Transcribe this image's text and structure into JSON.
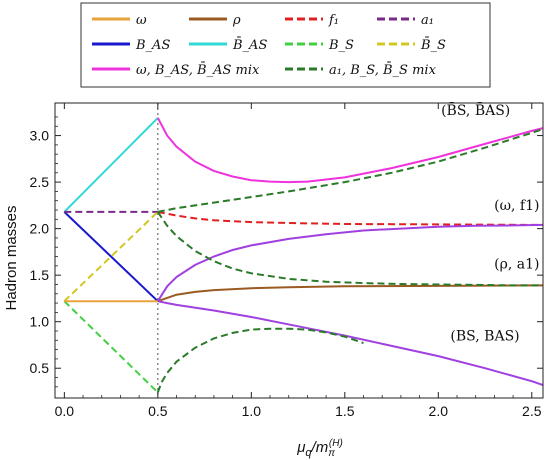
{
  "chart_data": {
    "type": "line",
    "title": "",
    "xlabel": "μq/mπ(H)",
    "ylabel": "Hadron masses",
    "xlim": [
      -0.05,
      2.56
    ],
    "ylim": [
      0.18,
      3.35
    ],
    "xticks": [
      0.0,
      0.5,
      1.0,
      1.5,
      2.0,
      2.5
    ],
    "xtick_labels": [
      "0.0",
      "0.5",
      "1.0",
      "1.5",
      "2.0",
      "2.5"
    ],
    "yticks": [
      0.5,
      1.0,
      1.5,
      2.0,
      2.5,
      3.0
    ],
    "ytick_labels": [
      "0.5",
      "1.0",
      "1.5",
      "2.0",
      "2.5",
      "3.0"
    ],
    "grid": false,
    "legend_position": "top-outside",
    "vertical_reference_x": 0.5,
    "legend": [
      {
        "id": "omega",
        "label": "ω",
        "color": "#e8a33a",
        "dash": "solid"
      },
      {
        "id": "rho",
        "label": "ρ",
        "color": "#9a5a22",
        "dash": "solid"
      },
      {
        "id": "f1",
        "label": "f₁",
        "color": "#e02020",
        "dash": "dashed"
      },
      {
        "id": "a1",
        "label": "a₁",
        "color": "#7a2a8a",
        "dash": "dashed"
      },
      {
        "id": "BAS",
        "label": "B_AS",
        "color": "#1818cc",
        "dash": "solid"
      },
      {
        "id": "BbarAS",
        "label": "B̄_AS",
        "color": "#30d8d8",
        "dash": "solid"
      },
      {
        "id": "BS",
        "label": "B_S",
        "color": "#40d040",
        "dash": "dashed"
      },
      {
        "id": "BbarS",
        "label": "B̄_S",
        "color": "#d0c820",
        "dash": "dashed"
      },
      {
        "id": "mix1",
        "label": "ω, B_AS, B̄_AS mix",
        "color": "#ee33dd",
        "dash": "solid"
      },
      {
        "id": "mix2",
        "label": "a₁, B_S, B̄_S mix",
        "color": "#2a7a2a",
        "dash": "dashed"
      }
    ],
    "annotations": [
      {
        "text": "(B̄S, B̄AS)",
        "x": 2.2,
        "y": 3.22
      },
      {
        "text": "(ω, f1)",
        "x": 2.42,
        "y": 2.2
      },
      {
        "text": "(ρ, a1)",
        "x": 2.42,
        "y": 1.57
      },
      {
        "text": "(BS, BAS)",
        "x": 2.25,
        "y": 0.8
      }
    ],
    "series": [
      {
        "legend": "BbarAS",
        "color": "#30d8d8",
        "dash": "solid",
        "width": 2,
        "x": [
          0.0,
          0.5
        ],
        "y": [
          2.18,
          3.19
        ]
      },
      {
        "legend": "BAS",
        "color": "#1818cc",
        "dash": "solid",
        "width": 2,
        "x": [
          0.0,
          0.5
        ],
        "y": [
          2.18,
          1.22
        ]
      },
      {
        "legend": "a1",
        "color": "#7a2a8a",
        "dash": "dashed",
        "width": 2,
        "x": [
          0.0,
          0.5
        ],
        "y": [
          2.18,
          2.18
        ]
      },
      {
        "legend": "BbarS",
        "color": "#d0c820",
        "dash": "dashed",
        "width": 2,
        "x": [
          0.0,
          0.5
        ],
        "y": [
          1.22,
          2.18
        ]
      },
      {
        "legend": "BS",
        "color": "#40d040",
        "dash": "dashed",
        "width": 2,
        "x": [
          0.0,
          0.5
        ],
        "y": [
          1.22,
          0.24
        ]
      },
      {
        "legend": "omega",
        "color": "#e8a33a",
        "dash": "solid",
        "width": 2,
        "x": [
          0.0,
          0.5
        ],
        "y": [
          1.22,
          1.22
        ]
      },
      {
        "legend": "rho",
        "color": "#9a5a22",
        "dash": "solid",
        "width": 2,
        "x": [
          0.5,
          0.6,
          0.7,
          0.8,
          1.0,
          1.2,
          1.5,
          2.0,
          2.5,
          2.56
        ],
        "y": [
          1.22,
          1.29,
          1.32,
          1.34,
          1.36,
          1.37,
          1.38,
          1.385,
          1.39,
          1.39
        ]
      },
      {
        "legend": "f1",
        "color": "#e02020",
        "dash": "dashed",
        "width": 2,
        "x": [
          0.5,
          0.6,
          0.7,
          0.8,
          1.0,
          1.2,
          1.5,
          2.0,
          2.5,
          2.56
        ],
        "y": [
          2.18,
          2.14,
          2.11,
          2.09,
          2.07,
          2.06,
          2.05,
          2.045,
          2.04,
          2.04
        ]
      },
      {
        "legend": "mix1",
        "color": "#ee33dd",
        "dash": "solid",
        "width": 2,
        "x": [
          0.5,
          0.55,
          0.6,
          0.7,
          0.8,
          0.9,
          1.0,
          1.1,
          1.2,
          1.3,
          1.5,
          1.75,
          2.0,
          2.25,
          2.5,
          2.56
        ],
        "y": [
          3.19,
          3.0,
          2.88,
          2.72,
          2.62,
          2.56,
          2.52,
          2.505,
          2.5,
          2.505,
          2.55,
          2.65,
          2.77,
          2.91,
          3.05,
          3.08
        ]
      },
      {
        "legend": "mix1",
        "color": "#a040e0",
        "dash": "solid",
        "width": 2,
        "x": [
          0.5,
          0.55,
          0.6,
          0.7,
          0.8,
          0.9,
          1.0,
          1.2,
          1.4,
          1.6,
          1.8,
          2.0,
          2.2,
          2.4,
          2.56
        ],
        "y": [
          1.22,
          1.38,
          1.48,
          1.61,
          1.7,
          1.77,
          1.82,
          1.89,
          1.94,
          1.98,
          2.0,
          2.02,
          2.03,
          2.035,
          2.04
        ]
      },
      {
        "legend": "mix1",
        "color": "#a040e0",
        "dash": "solid",
        "width": 2,
        "x": [
          0.5,
          0.55,
          0.6,
          0.8,
          1.0,
          1.25,
          1.5,
          1.75,
          2.0,
          2.25,
          2.5,
          2.56
        ],
        "y": [
          1.22,
          1.2,
          1.18,
          1.12,
          1.05,
          0.95,
          0.85,
          0.74,
          0.63,
          0.5,
          0.36,
          0.32
        ]
      },
      {
        "legend": "mix2",
        "color": "#2a7a2a",
        "dash": "dashed",
        "width": 2,
        "x": [
          0.5,
          0.55,
          0.6,
          0.7,
          0.8,
          0.9,
          1.0,
          1.2,
          1.5,
          1.75,
          2.0,
          2.25,
          2.5,
          2.56
        ],
        "y": [
          2.18,
          2.2,
          2.22,
          2.25,
          2.28,
          2.31,
          2.34,
          2.4,
          2.5,
          2.6,
          2.72,
          2.87,
          3.03,
          3.07
        ]
      },
      {
        "legend": "mix2",
        "color": "#2a7a2a",
        "dash": "dashed",
        "width": 2,
        "x": [
          0.5,
          0.55,
          0.6,
          0.7,
          0.8,
          0.9,
          1.0,
          1.2,
          1.4,
          1.6,
          1.8,
          2.0,
          2.2,
          2.4,
          2.56
        ],
        "y": [
          2.18,
          2.03,
          1.92,
          1.76,
          1.65,
          1.57,
          1.52,
          1.46,
          1.43,
          1.415,
          1.405,
          1.4,
          1.395,
          1.39,
          1.39
        ]
      },
      {
        "legend": "mix2",
        "color": "#2a7a2a",
        "dash": "dashed",
        "width": 2,
        "x": [
          0.5,
          0.52,
          0.55,
          0.6,
          0.7,
          0.8,
          0.9,
          1.0,
          1.1,
          1.2,
          1.3,
          1.4,
          1.5,
          1.6
        ],
        "y": [
          0.24,
          0.35,
          0.45,
          0.57,
          0.72,
          0.82,
          0.88,
          0.915,
          0.925,
          0.925,
          0.915,
          0.885,
          0.84,
          0.77
        ]
      }
    ]
  }
}
